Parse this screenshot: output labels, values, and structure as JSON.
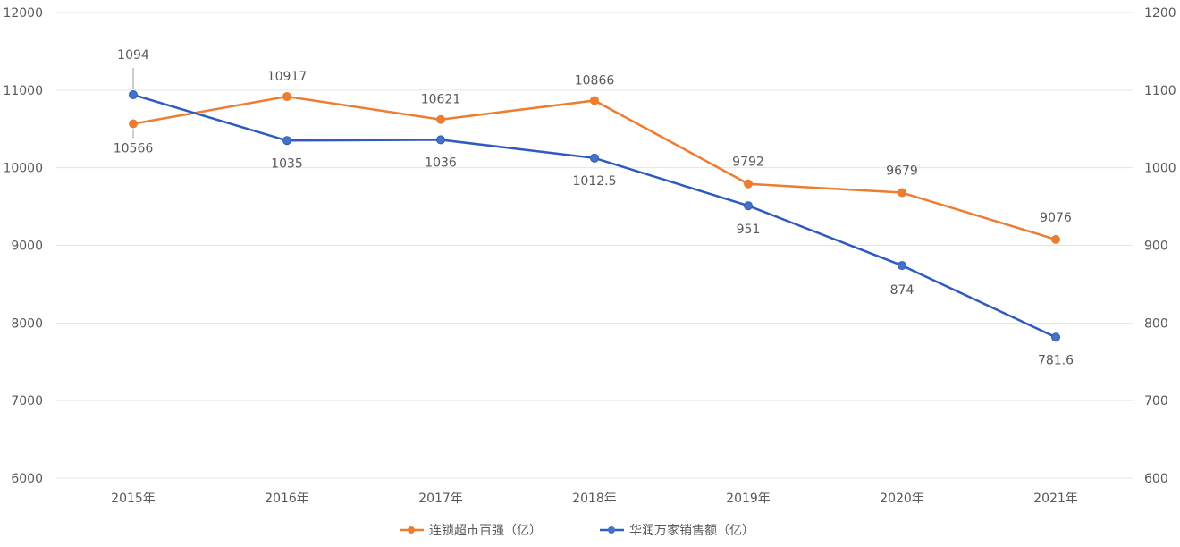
{
  "chart_data": {
    "type": "line",
    "categories": [
      "2015年",
      "2016年",
      "2017年",
      "2018年",
      "2019年",
      "2020年",
      "2021年"
    ],
    "series": [
      {
        "name": "连锁超市百强（亿）",
        "axis": "left",
        "color": "#ED7D31",
        "values": [
          10566,
          10917,
          10621,
          10866,
          9792,
          9679,
          9076
        ],
        "labels": [
          "10566",
          "10917",
          "10621",
          "10866",
          "9792",
          "9679",
          "9076"
        ]
      },
      {
        "name": "华润万家销售额（亿）",
        "axis": "right",
        "color": "#2E5BBF",
        "values": [
          1094,
          1035,
          1036,
          1012.5,
          951,
          874,
          781.6
        ],
        "labels": [
          "1094",
          "1035",
          "1036",
          "1012.5",
          "951",
          "874",
          "781.6"
        ]
      }
    ],
    "y_left": {
      "min": 6000,
      "max": 12000,
      "step": 1000,
      "ticks": [
        "6000",
        "7000",
        "8000",
        "9000",
        "10000",
        "11000",
        "12000"
      ]
    },
    "y_right": {
      "min": 600,
      "max": 1200,
      "step": 100,
      "ticks": [
        "600",
        "700",
        "800",
        "900",
        "1000",
        "1100",
        "1200"
      ]
    },
    "grid": true,
    "legend": "bottom"
  }
}
